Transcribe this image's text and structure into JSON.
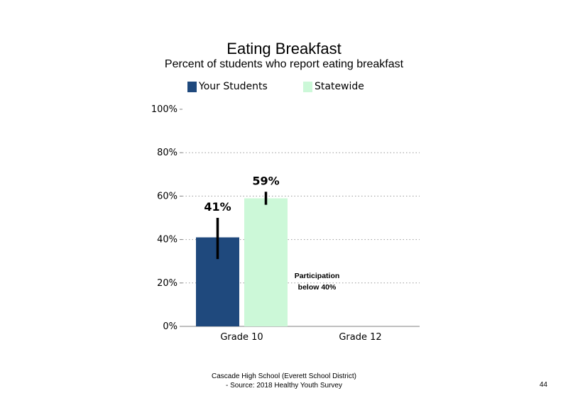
{
  "chart_data": {
    "type": "bar",
    "title": "Eating Breakfast",
    "subtitle": "Percent of students who report eating breakfast",
    "categories": [
      "Grade 10",
      "Grade 12"
    ],
    "series": [
      {
        "name": "Your Students",
        "color": "#1f497d",
        "values": [
          41,
          null
        ],
        "labels": [
          "41%",
          ""
        ],
        "error_low": [
          31,
          null
        ],
        "error_high": [
          50,
          null
        ]
      },
      {
        "name": "Statewide",
        "color": "#ccf8d8",
        "values": [
          59,
          null
        ],
        "labels": [
          "59%",
          ""
        ],
        "error_low": [
          56,
          null
        ],
        "error_high": [
          62,
          null
        ]
      }
    ],
    "ylim": [
      0,
      100
    ],
    "yticks": [
      0,
      20,
      40,
      60,
      80,
      100
    ],
    "ytick_labels": [
      "0%",
      "20%",
      "40%",
      "60%",
      "80%",
      "100%"
    ],
    "grid": true,
    "grid_style": "dotted",
    "legend_position": "top",
    "annotation": {
      "category": "Grade 12",
      "text_line1": "Participation",
      "text_line2": "below 40%"
    }
  },
  "footer": {
    "line1": "Cascade High School (Everett School District)",
    "line2": "- Source: 2018 Healthy  Youth Survey"
  },
  "page_number": "44"
}
